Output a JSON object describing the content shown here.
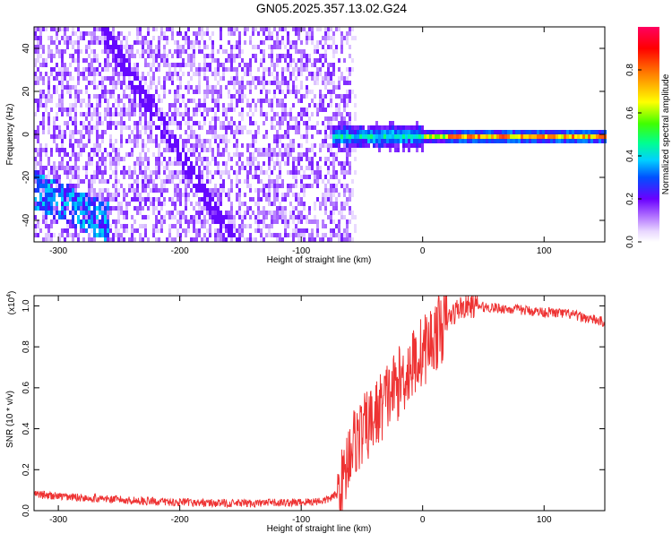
{
  "title": "GN05.2025.357.13.02.G24",
  "chart_data": [
    {
      "type": "heatmap",
      "xlabel": "Height of straight line (km)",
      "ylabel": "Frequency (Hz)",
      "xlim": [
        -320,
        150
      ],
      "ylim": [
        -50,
        50
      ],
      "x_ticks": [
        "-300",
        "-200",
        "-100",
        "0",
        "100"
      ],
      "y_ticks": [
        "-40",
        "-20",
        "0",
        "20",
        "40"
      ],
      "colorbar": {
        "label": "Normalized spectral amplitude",
        "range": [
          0,
          1
        ],
        "ticks": [
          "0.0",
          "0.2",
          "0.4",
          "0.6",
          "0.8"
        ],
        "colormap": "rainbow"
      },
      "features": [
        {
          "kind": "noise",
          "x_range": [
            -320,
            -60
          ],
          "y_range": [
            -50,
            50
          ],
          "amplitude": 0.15
        },
        {
          "kind": "blob",
          "x_range": [
            -320,
            -260
          ],
          "y_range": [
            -45,
            -15
          ],
          "amplitude": 0.35
        },
        {
          "kind": "band",
          "x_range": [
            -75,
            150
          ],
          "y_center": 0,
          "amplitude": 0.75
        }
      ]
    },
    {
      "type": "line",
      "xlabel": "Height of straight line (km)",
      "ylabel": "SNR (10 * v/v)",
      "y_multiplier": "(x10",
      "y_multiplier_exp": "4",
      "y_multiplier_close": ")",
      "xlim": [
        -320,
        150
      ],
      "ylim": [
        0,
        1.05
      ],
      "x_ticks": [
        "-300",
        "-200",
        "-100",
        "0",
        "100"
      ],
      "y_ticks": [
        "0.0",
        "0.2",
        "0.4",
        "0.6",
        "0.8",
        "1.0"
      ],
      "series": [
        {
          "color": "#ee3333",
          "x": [
            -320,
            -300,
            -270,
            -240,
            -200,
            -150,
            -100,
            -80,
            -70,
            -65,
            -60,
            -55,
            -50,
            -40,
            -30,
            -20,
            -10,
            0,
            10,
            20,
            30,
            40,
            60,
            80,
            100,
            120,
            150
          ],
          "y": [
            0.08,
            0.07,
            0.06,
            0.05,
            0.04,
            0.035,
            0.04,
            0.05,
            0.08,
            0.15,
            0.3,
            0.35,
            0.38,
            0.45,
            0.55,
            0.62,
            0.7,
            0.78,
            0.85,
            0.93,
            0.99,
            1.0,
            0.99,
            0.98,
            0.97,
            0.96,
            0.92
          ]
        }
      ]
    }
  ]
}
